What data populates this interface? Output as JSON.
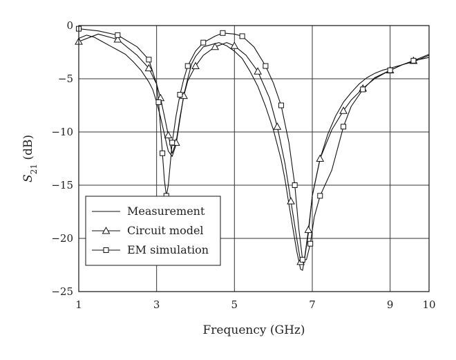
{
  "chart_data": {
    "type": "line",
    "xlabel": "Frequency (GHz)",
    "ylabel": {
      "main": "S",
      "sub": "21",
      "unit": " (dB)"
    },
    "xlim": [
      1,
      10
    ],
    "ylim": [
      -25,
      0
    ],
    "xticks": [
      1,
      3,
      5,
      7,
      9,
      10
    ],
    "yticks": [
      0,
      -5,
      -10,
      -15,
      -20,
      -25
    ],
    "xtick_labels": [
      "1",
      "3",
      "5",
      "7",
      "9",
      "10"
    ],
    "ytick_labels": [
      "0",
      "−5",
      "−10",
      "−15",
      "−20",
      "−25"
    ],
    "vgrid": [
      3,
      5,
      7,
      9
    ],
    "hgrid": [
      -5,
      -10,
      -15,
      -20
    ],
    "grid": true,
    "legend_position": "bottom-left",
    "series": [
      {
        "name": "Measurement",
        "marker": "none",
        "x": [
          1.0,
          1.2,
          1.4,
          1.6,
          1.8,
          2.0,
          2.2,
          2.4,
          2.6,
          2.8,
          2.9,
          3.0,
          3.1,
          3.2,
          3.3,
          3.4,
          3.5,
          3.6,
          3.7,
          3.8,
          3.9,
          4.0,
          4.2,
          4.4,
          4.6,
          4.8,
          5.0,
          5.2,
          5.4,
          5.6,
          5.8,
          6.0,
          6.2,
          6.3,
          6.4,
          6.5,
          6.6,
          6.7,
          6.75,
          6.8,
          6.9,
          7.0,
          7.2,
          7.4,
          7.6,
          7.8,
          8.0,
          8.2,
          8.4,
          8.6,
          8.8,
          9.0,
          9.2,
          9.4,
          9.6,
          9.8,
          10.0
        ],
        "y": [
          -1.2,
          -0.9,
          -1.1,
          -1.5,
          -1.9,
          -2.3,
          -2.7,
          -3.4,
          -4.2,
          -5.3,
          -6.0,
          -7.2,
          -8.6,
          -10.2,
          -11.8,
          -12.3,
          -11.2,
          -8.8,
          -6.5,
          -5.0,
          -3.6,
          -2.9,
          -2.0,
          -1.8,
          -1.6,
          -1.9,
          -2.4,
          -3.1,
          -4.3,
          -5.7,
          -7.6,
          -9.8,
          -12.6,
          -14.5,
          -16.8,
          -19.0,
          -21.2,
          -22.9,
          -23.0,
          -22.0,
          -19.5,
          -16.0,
          -12.5,
          -10.2,
          -8.5,
          -7.2,
          -6.3,
          -5.5,
          -4.9,
          -4.5,
          -4.2,
          -4.0,
          -3.8,
          -3.6,
          -3.4,
          -3.1,
          -2.8
        ]
      },
      {
        "name": "Circuit model",
        "marker": "triangle",
        "x": [
          1.0,
          1.5,
          2.0,
          2.5,
          2.8,
          3.0,
          3.1,
          3.2,
          3.3,
          3.4,
          3.5,
          3.6,
          3.7,
          3.8,
          4.0,
          4.2,
          4.5,
          4.8,
          5.0,
          5.3,
          5.6,
          5.9,
          6.1,
          6.3,
          6.45,
          6.6,
          6.7,
          6.8,
          6.9,
          7.0,
          7.2,
          7.5,
          7.8,
          8.0,
          8.3,
          8.6,
          9.0,
          9.3,
          9.6,
          10.0
        ],
        "y": [
          -1.5,
          -0.8,
          -1.3,
          -2.8,
          -4.0,
          -5.5,
          -6.8,
          -8.5,
          -10.3,
          -12.0,
          -11.0,
          -8.6,
          -6.6,
          -5.2,
          -3.8,
          -2.8,
          -2.0,
          -1.6,
          -1.9,
          -2.8,
          -4.3,
          -6.8,
          -9.5,
          -13.0,
          -16.5,
          -20.0,
          -22.2,
          -21.9,
          -19.2,
          -16.0,
          -12.5,
          -9.8,
          -8.0,
          -7.0,
          -5.9,
          -5.0,
          -4.2,
          -3.7,
          -3.3,
          -2.7
        ]
      },
      {
        "name": "EM simulation",
        "marker": "square",
        "x": [
          1.0,
          1.5,
          2.0,
          2.5,
          2.8,
          3.0,
          3.05,
          3.1,
          3.15,
          3.2,
          3.25,
          3.3,
          3.4,
          3.5,
          3.6,
          3.7,
          3.8,
          4.0,
          4.2,
          4.5,
          4.7,
          5.0,
          5.2,
          5.5,
          5.8,
          6.0,
          6.2,
          6.4,
          6.55,
          6.65,
          6.75,
          6.85,
          6.95,
          7.05,
          7.2,
          7.5,
          7.8,
          8.0,
          8.3,
          8.6,
          9.0,
          9.3,
          9.6,
          10.0
        ],
        "y": [
          -0.3,
          -0.5,
          -0.9,
          -2.0,
          -3.2,
          -5.5,
          -7.2,
          -9.5,
          -12.0,
          -14.5,
          -16.0,
          -15.0,
          -11.0,
          -8.5,
          -6.5,
          -5.0,
          -3.8,
          -2.4,
          -1.6,
          -1.0,
          -0.7,
          -0.8,
          -1.0,
          -2.0,
          -3.8,
          -5.4,
          -7.5,
          -11.0,
          -15.0,
          -19.0,
          -22.0,
          -22.0,
          -20.5,
          -18.0,
          -16.0,
          -13.6,
          -9.5,
          -7.6,
          -6.0,
          -4.9,
          -4.2,
          -3.7,
          -3.3,
          -3.0
        ]
      }
    ]
  }
}
